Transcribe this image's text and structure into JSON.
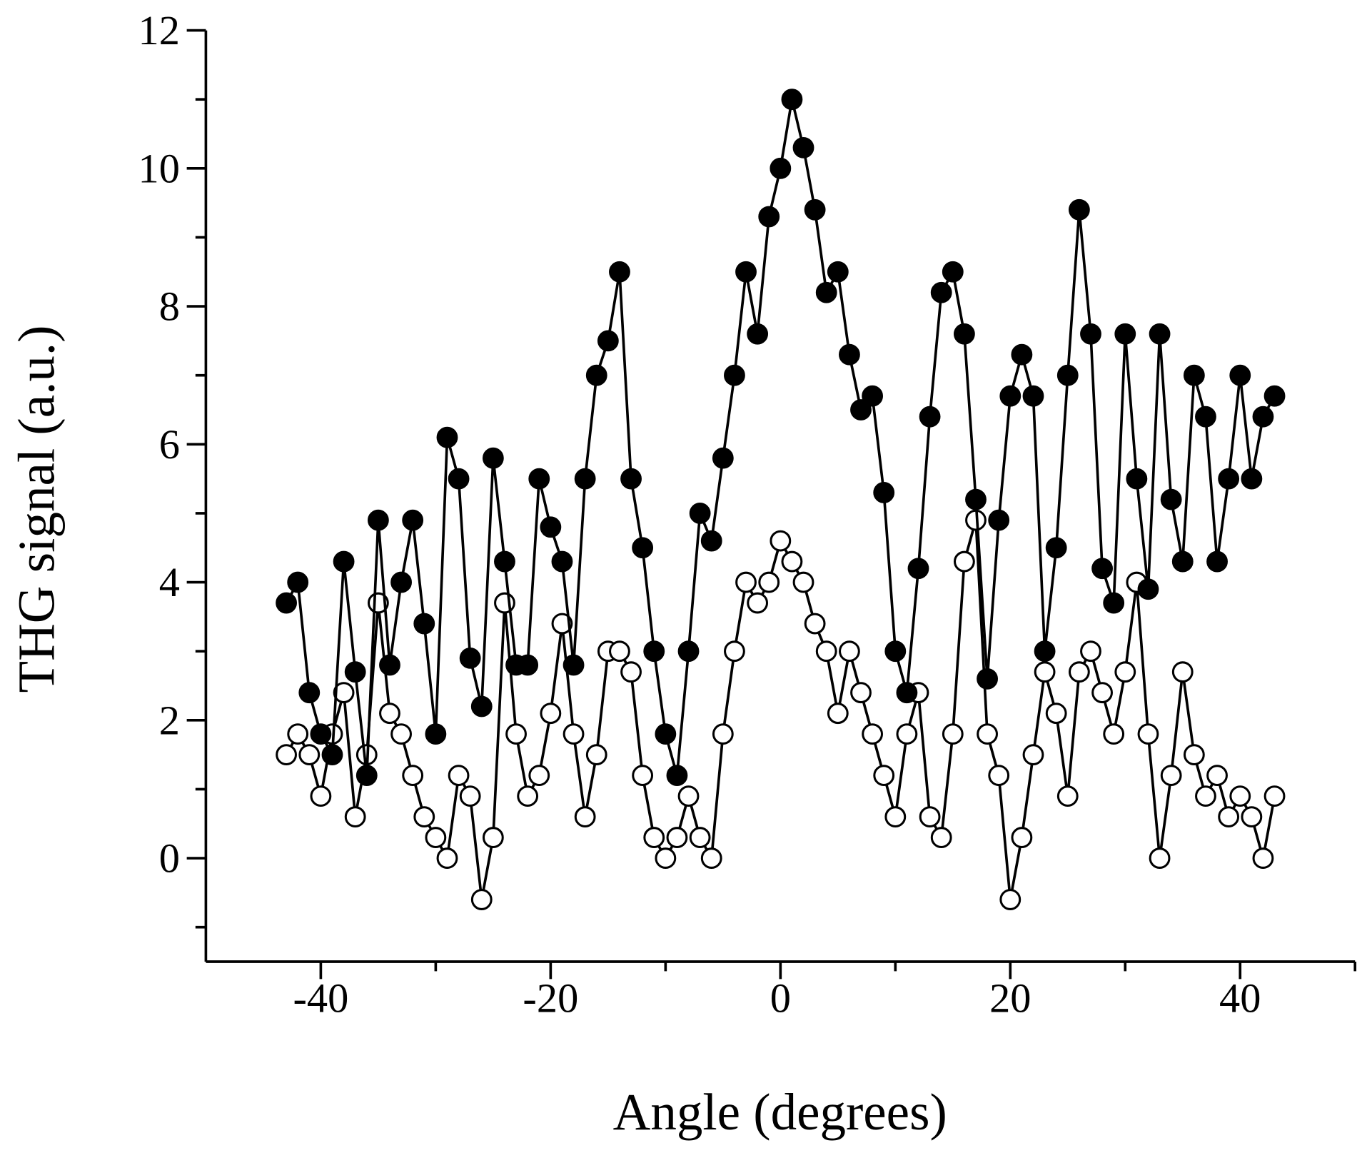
{
  "chart_data": {
    "type": "scatter",
    "xlabel": "Angle (degrees)",
    "ylabel": "THG signal (a.u.)",
    "xlim": [
      -50,
      50
    ],
    "ylim": [
      -1.5,
      12
    ],
    "xticks": [
      -40,
      -20,
      0,
      20,
      40
    ],
    "yticks": [
      0,
      2,
      4,
      6,
      8,
      10,
      12
    ],
    "xticks_minor": [
      -30,
      -10,
      10,
      30,
      50
    ],
    "yticks_minor": [
      -1,
      1,
      3,
      5,
      7,
      9,
      11
    ],
    "grid": false,
    "x": [
      -43,
      -42,
      -41,
      -40,
      -39,
      -38,
      -37,
      -36,
      -35,
      -34,
      -33,
      -32,
      -31,
      -30,
      -29,
      -28,
      -27,
      -26,
      -25,
      -24,
      -23,
      -22,
      -21,
      -20,
      -19,
      -18,
      -17,
      -16,
      -15,
      -14,
      -13,
      -12,
      -11,
      -10,
      -9,
      -8,
      -7,
      -6,
      -5,
      -4,
      -3,
      -2,
      -1,
      0,
      1,
      2,
      3,
      4,
      5,
      6,
      7,
      8,
      9,
      10,
      11,
      12,
      13,
      14,
      15,
      16,
      17,
      18,
      19,
      20,
      21,
      22,
      23,
      24,
      25,
      26,
      27,
      28,
      29,
      30,
      31,
      32,
      33,
      34,
      35,
      36,
      37,
      38,
      39,
      40,
      41,
      42,
      43
    ],
    "series": [
      {
        "color": "#000000",
        "filled": false,
        "values": [
          1.5,
          1.8,
          1.5,
          0.9,
          1.8,
          2.4,
          0.6,
          1.5,
          3.7,
          2.1,
          1.8,
          1.2,
          0.6,
          0.3,
          0.0,
          1.2,
          0.9,
          -0.6,
          0.3,
          3.7,
          1.8,
          0.9,
          1.2,
          2.1,
          3.4,
          1.8,
          0.6,
          1.5,
          3.0,
          3.0,
          2.7,
          1.2,
          0.3,
          0.0,
          0.3,
          0.9,
          0.3,
          0.0,
          1.8,
          3.0,
          4.0,
          3.7,
          4.0,
          4.6,
          4.3,
          4.0,
          3.4,
          3.0,
          2.1,
          3.0,
          2.4,
          1.8,
          1.2,
          0.6,
          1.8,
          2.4,
          0.6,
          0.3,
          1.8,
          4.3,
          4.9,
          1.8,
          1.2,
          -0.6,
          0.3,
          1.5,
          2.7,
          2.1,
          0.9,
          2.7,
          3.0,
          2.4,
          1.8,
          2.7,
          4.0,
          1.8,
          0.0,
          1.2,
          2.7,
          1.5,
          0.9,
          1.2,
          0.6,
          0.9,
          0.6,
          0.0,
          0.9
        ]
      },
      {
        "color": "#000000",
        "filled": true,
        "values": [
          3.7,
          4.0,
          2.4,
          1.8,
          1.5,
          4.3,
          2.7,
          1.2,
          4.9,
          2.8,
          4.0,
          4.9,
          3.4,
          1.8,
          6.1,
          5.5,
          2.9,
          2.2,
          5.8,
          4.3,
          2.8,
          2.8,
          5.5,
          4.8,
          4.3,
          2.8,
          5.5,
          7.0,
          7.5,
          8.5,
          5.5,
          4.5,
          3.0,
          1.8,
          1.2,
          3.0,
          5.0,
          4.6,
          5.8,
          7.0,
          8.5,
          7.6,
          9.3,
          10.0,
          11.0,
          10.3,
          9.4,
          8.2,
          8.5,
          7.3,
          6.5,
          6.7,
          5.3,
          3.0,
          2.4,
          4.2,
          6.4,
          8.2,
          8.5,
          7.6,
          5.2,
          2.6,
          4.9,
          6.7,
          7.3,
          6.7,
          3.0,
          4.5,
          7.0,
          9.4,
          7.6,
          4.2,
          3.7,
          7.6,
          5.5,
          3.9,
          7.6,
          5.2,
          4.3,
          7.0,
          6.4,
          4.3,
          5.5,
          7.0,
          5.5,
          6.4,
          6.7
        ]
      }
    ]
  }
}
